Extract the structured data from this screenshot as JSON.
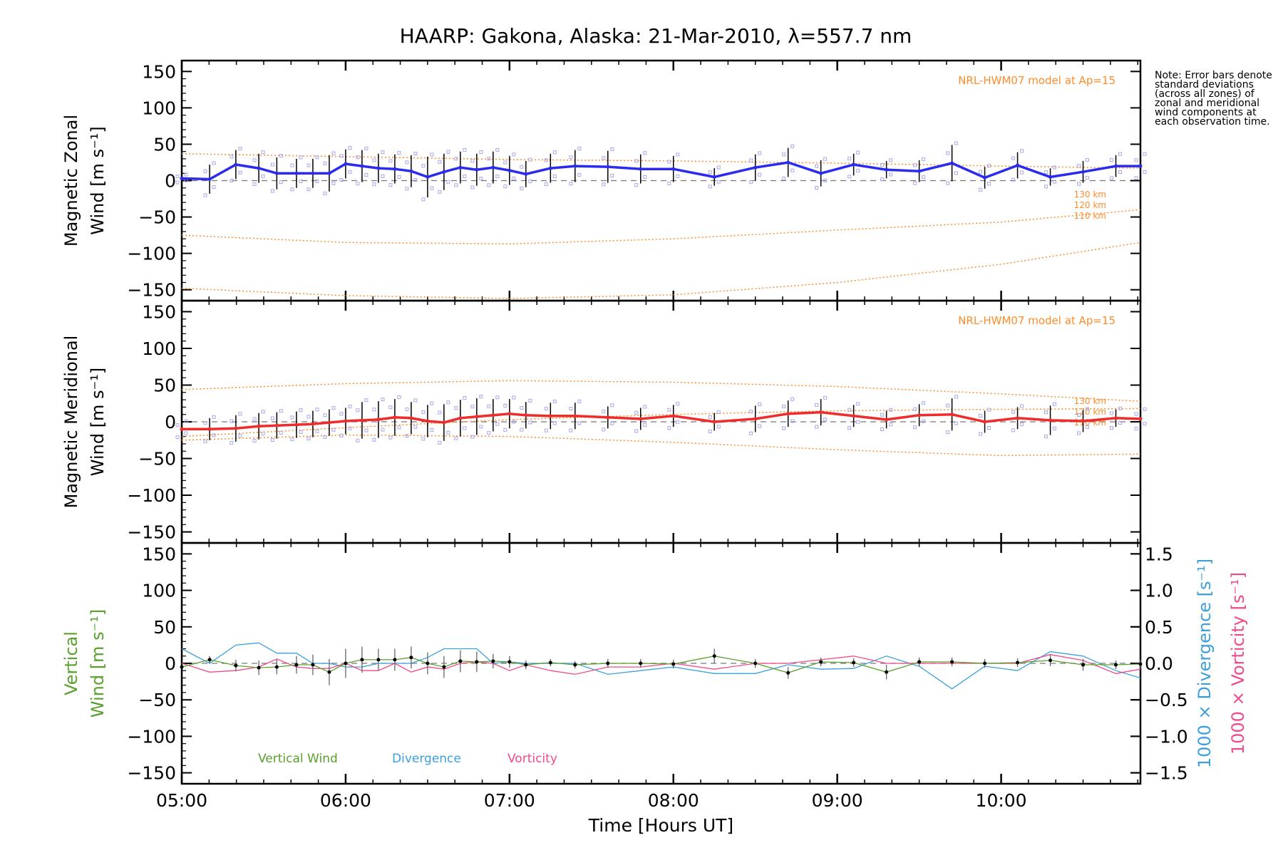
{
  "title": "HAARP: Gakona,  Alaska: 21-Mar-2010, λ=557.7 nm",
  "note": "Note: Error bars denote standard deviations (across all zones) of zonal and meridional wind components at each observation time.",
  "colors": {
    "zonal": "#2b2bf0",
    "meridional": "#f02b2b",
    "model": "#ff8c2a",
    "vertical": "#5aa02c",
    "divergence": "#3ca0dc",
    "vorticity": "#f04a8c",
    "scatter": "#a8a8e8",
    "errorbar": "#000000"
  },
  "chart_data": [
    {
      "type": "line",
      "panel": "zonal",
      "ylabel_line1": "Magnetic Zonal",
      "ylabel_line2": "Wind [m s⁻¹]",
      "ylim": [
        -165,
        165
      ],
      "yticks": [
        150,
        100,
        50,
        0,
        -50,
        -100,
        -150
      ],
      "model_label": "NRL-HWM07 model at Ap=15",
      "model_altitude_labels": [
        "130 km",
        "120 km",
        "110 km"
      ],
      "x": [
        5.0,
        5.17,
        5.33,
        5.47,
        5.58,
        5.7,
        5.8,
        5.9,
        6.0,
        6.1,
        6.2,
        6.3,
        6.4,
        6.5,
        6.6,
        6.7,
        6.8,
        6.9,
        7.0,
        7.1,
        7.25,
        7.4,
        7.6,
        7.8,
        8.0,
        8.25,
        8.5,
        8.7,
        8.9,
        9.1,
        9.3,
        9.5,
        9.7,
        9.9,
        10.1,
        10.3,
        10.5,
        10.7,
        10.85
      ],
      "y": [
        3,
        2,
        22,
        17,
        10,
        10,
        10,
        10,
        23,
        20,
        17,
        16,
        13,
        5,
        12,
        18,
        15,
        18,
        14,
        9,
        17,
        20,
        19,
        16,
        16,
        5,
        18,
        25,
        10,
        22,
        15,
        13,
        24,
        4,
        21,
        5,
        12,
        20,
        20
      ],
      "err": [
        5,
        20,
        20,
        20,
        22,
        20,
        20,
        25,
        20,
        22,
        20,
        20,
        22,
        28,
        25,
        22,
        22,
        22,
        20,
        18,
        20,
        22,
        22,
        20,
        18,
        12,
        18,
        20,
        18,
        15,
        12,
        15,
        25,
        15,
        18,
        12,
        15,
        15,
        15
      ],
      "model_curves": [
        {
          "x": [
            5.0,
            6.0,
            7.0,
            8.0,
            9.0,
            10.0,
            10.85
          ],
          "y": [
            37,
            33,
            29,
            27,
            24,
            20,
            17
          ]
        },
        {
          "x": [
            5.0,
            6.0,
            7.0,
            8.0,
            9.0,
            10.0,
            10.85
          ],
          "y": [
            -75,
            -85,
            -87,
            -80,
            -68,
            -57,
            -40
          ]
        },
        {
          "x": [
            5.0,
            6.0,
            7.0,
            8.0,
            9.0,
            10.0,
            10.85
          ],
          "y": [
            -148,
            -158,
            -162,
            -157,
            -140,
            -115,
            -85
          ]
        }
      ]
    },
    {
      "type": "line",
      "panel": "meridional",
      "ylabel_line1": "Magnetic Meridional",
      "ylabel_line2": "Wind [m s⁻¹]",
      "ylim": [
        -165,
        165
      ],
      "yticks": [
        150,
        100,
        50,
        0,
        -50,
        -100,
        -150
      ],
      "model_label": "NRL-HWM07 model at Ap=15",
      "model_altitude_labels": [
        "130 km",
        "120 km",
        "110 km"
      ],
      "x": [
        5.0,
        5.17,
        5.33,
        5.47,
        5.58,
        5.7,
        5.8,
        5.9,
        6.0,
        6.1,
        6.2,
        6.3,
        6.4,
        6.5,
        6.6,
        6.7,
        6.8,
        6.9,
        7.0,
        7.1,
        7.25,
        7.4,
        7.6,
        7.8,
        8.0,
        8.25,
        8.5,
        8.7,
        8.9,
        9.1,
        9.3,
        9.5,
        9.7,
        9.9,
        10.1,
        10.3,
        10.5,
        10.7,
        10.85
      ],
      "y": [
        -10,
        -10,
        -9,
        -6,
        -5,
        -4,
        -3,
        -1,
        1,
        2,
        3,
        6,
        5,
        1,
        -1,
        5,
        7,
        9,
        11,
        9,
        8,
        8,
        6,
        4,
        8,
        0,
        4,
        11,
        13,
        8,
        3,
        9,
        10,
        0,
        5,
        2,
        1,
        5,
        4
      ],
      "err": [
        10,
        15,
        18,
        18,
        18,
        18,
        18,
        18,
        18,
        25,
        25,
        25,
        22,
        22,
        25,
        25,
        25,
        22,
        20,
        18,
        18,
        18,
        15,
        15,
        15,
        12,
        18,
        18,
        18,
        15,
        12,
        15,
        22,
        15,
        15,
        20,
        15,
        12,
        12
      ],
      "model_curves": [
        {
          "x": [
            5.0,
            6.0,
            7.0,
            8.0,
            9.0,
            10.0,
            10.85
          ],
          "y": [
            44,
            52,
            56,
            54,
            48,
            38,
            28
          ]
        },
        {
          "x": [
            5.0,
            6.0,
            7.0,
            8.0,
            9.0,
            10.0,
            10.85
          ],
          "y": [
            -20,
            -8,
            3,
            10,
            15,
            17,
            18
          ]
        },
        {
          "x": [
            5.0,
            6.0,
            7.0,
            8.0,
            9.0,
            10.0,
            10.85
          ],
          "y": [
            -25,
            -18,
            -20,
            -28,
            -38,
            -46,
            -44
          ]
        }
      ]
    },
    {
      "type": "line",
      "panel": "vertical",
      "ylabel_line1": "Vertical",
      "ylabel_line2": "Wind [m s⁻¹]",
      "ylim": [
        -165,
        165
      ],
      "yticks": [
        150,
        100,
        50,
        0,
        -50,
        -100,
        -150
      ],
      "y2label_div": "1000 × Divergence [s⁻¹]",
      "y2label_vor": "1000 × Vorticity [s⁻¹]",
      "y2lim": [
        -1.65,
        1.65
      ],
      "y2ticks": [
        1.5,
        1.0,
        0.5,
        0.0,
        -0.5,
        -1.0,
        -1.5
      ],
      "xlabel": "Time [Hours UT]",
      "xticks": [
        "05:00",
        "06:00",
        "07:00",
        "08:00",
        "09:00",
        "10:00"
      ],
      "xtick_values": [
        5,
        6,
        7,
        8,
        9,
        10
      ],
      "xlim": [
        5.0,
        10.85
      ],
      "legend": [
        "Vertical Wind",
        "Divergence",
        "Vorticity"
      ],
      "series": [
        {
          "name": "Vertical Wind",
          "x": [
            5.0,
            5.17,
            5.33,
            5.47,
            5.58,
            5.7,
            5.8,
            5.9,
            6.0,
            6.1,
            6.2,
            6.3,
            6.4,
            6.5,
            6.6,
            6.7,
            6.8,
            6.9,
            7.0,
            7.1,
            7.25,
            7.4,
            7.6,
            7.8,
            8.0,
            8.25,
            8.5,
            8.7,
            8.9,
            9.1,
            9.3,
            9.5,
            9.7,
            9.9,
            10.1,
            10.3,
            10.5,
            10.7,
            10.85
          ],
          "y": [
            -5,
            5,
            -3,
            -6,
            -5,
            -2,
            -2,
            -12,
            0,
            5,
            5,
            5,
            8,
            0,
            -5,
            3,
            2,
            3,
            2,
            -2,
            1,
            -2,
            0,
            0,
            -1,
            10,
            0,
            -13,
            2,
            1,
            -12,
            2,
            2,
            0,
            1,
            4,
            -2,
            -2,
            -1
          ],
          "err": [
            0,
            5,
            8,
            10,
            10,
            12,
            14,
            18,
            20,
            18,
            15,
            15,
            15,
            15,
            15,
            15,
            14,
            10,
            8,
            6,
            5,
            5,
            6,
            6,
            6,
            10,
            6,
            8,
            6,
            6,
            10,
            6,
            6,
            6,
            6,
            8,
            8,
            6,
            6
          ]
        },
        {
          "name": "Divergence",
          "x": [
            5.0,
            5.17,
            5.33,
            5.47,
            5.58,
            5.7,
            5.8,
            5.9,
            6.0,
            6.1,
            6.2,
            6.3,
            6.4,
            6.5,
            6.6,
            6.7,
            6.8,
            6.9,
            7.0,
            7.1,
            7.25,
            7.4,
            7.6,
            7.8,
            8.0,
            8.25,
            8.5,
            8.7,
            8.9,
            9.1,
            9.3,
            9.5,
            9.7,
            9.9,
            10.1,
            10.3,
            10.5,
            10.7,
            10.85
          ],
          "y": [
            0.2,
            0.0,
            0.25,
            0.28,
            0.14,
            0.14,
            0.0,
            0.0,
            -0.05,
            -0.05,
            0.0,
            0.0,
            0.0,
            0.08,
            0.2,
            0.2,
            0.2,
            0.0,
            0.02,
            0.0,
            0.0,
            0.0,
            -0.15,
            -0.1,
            -0.05,
            -0.14,
            -0.14,
            -0.02,
            -0.08,
            -0.07,
            0.1,
            -0.04,
            -0.35,
            -0.04,
            -0.1,
            0.16,
            0.1,
            -0.1,
            -0.2
          ]
        },
        {
          "name": "Vorticity",
          "x": [
            5.0,
            5.17,
            5.33,
            5.47,
            5.58,
            5.7,
            5.8,
            5.9,
            6.0,
            6.1,
            6.2,
            6.3,
            6.4,
            6.5,
            6.6,
            6.7,
            6.8,
            6.9,
            7.0,
            7.1,
            7.25,
            7.4,
            7.6,
            7.8,
            8.0,
            8.25,
            8.5,
            8.7,
            8.9,
            9.1,
            9.3,
            9.5,
            9.7,
            9.9,
            10.1,
            10.3,
            10.5,
            10.7,
            10.85
          ],
          "y": [
            0.0,
            -0.12,
            -0.1,
            -0.05,
            0.06,
            -0.05,
            -0.07,
            -0.07,
            0.0,
            -0.1,
            -0.1,
            0.0,
            -0.12,
            -0.05,
            -0.08,
            0.0,
            0.02,
            0.0,
            -0.1,
            -0.02,
            -0.1,
            -0.15,
            -0.05,
            -0.05,
            0.0,
            -0.08,
            0.0,
            0.0,
            0.05,
            0.1,
            0.0,
            0.0,
            0.0,
            0.0,
            0.0,
            0.12,
            0.04,
            -0.14,
            -0.08
          ]
        }
      ]
    }
  ]
}
